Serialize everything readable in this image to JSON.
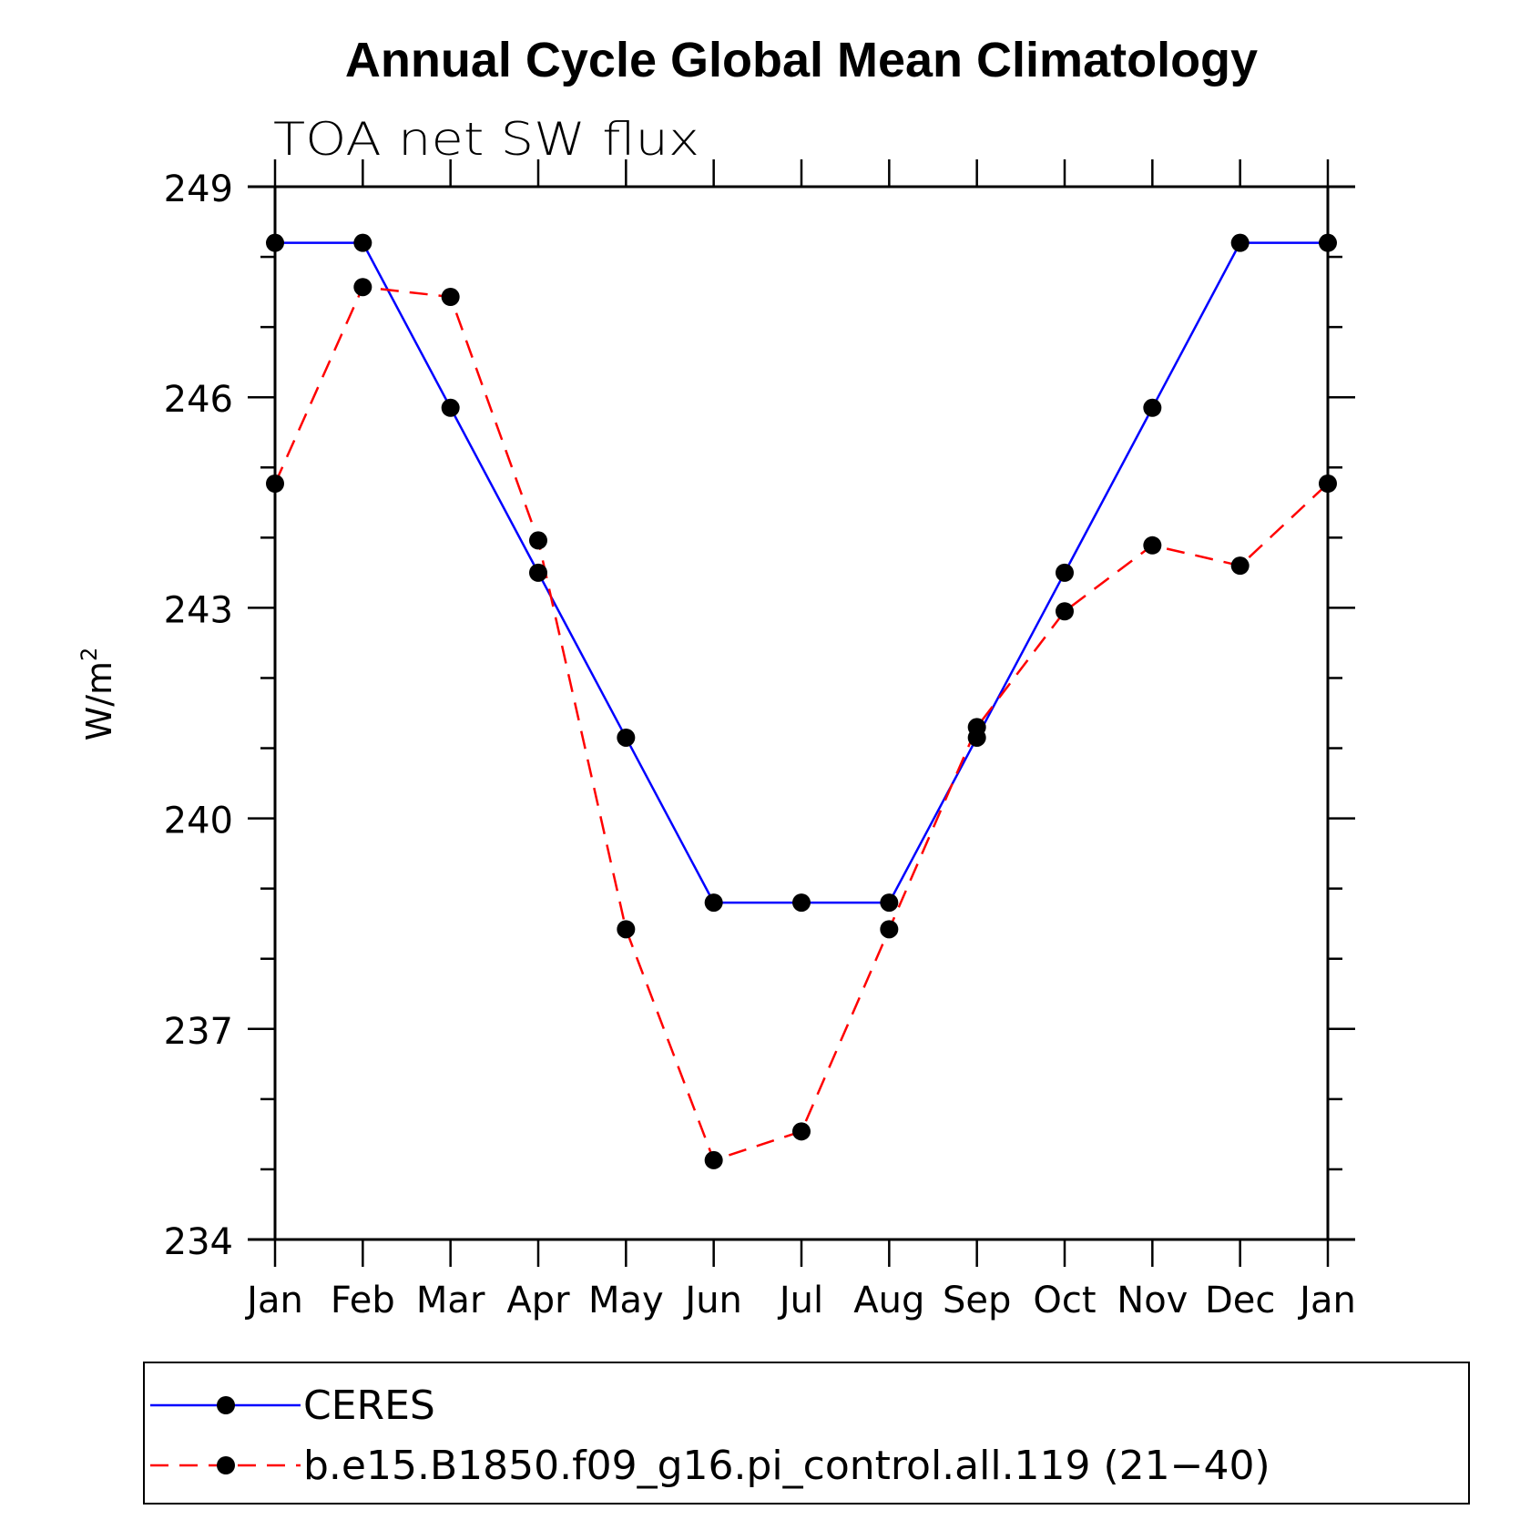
{
  "chart_data": {
    "type": "line",
    "title": "Annual Cycle Global Mean Climatology",
    "subtitle": "TOA net SW flux",
    "ylabel": "W/m",
    "ylabel_sup": "2",
    "xlabel": "",
    "categories": [
      "Jan",
      "Feb",
      "Mar",
      "Apr",
      "May",
      "Jun",
      "Jul",
      "Aug",
      "Sep",
      "Oct",
      "Nov",
      "Dec",
      "Jan"
    ],
    "ylim": [
      234,
      249
    ],
    "yticks": [
      "249",
      "246",
      "243",
      "240",
      "237",
      "234"
    ],
    "ytick_values": [
      249,
      246,
      243,
      240,
      237,
      234
    ],
    "grid": false,
    "legend_position": "bottom",
    "series": [
      {
        "name": "CERES",
        "color": "#0000ff",
        "dashed": false,
        "values": [
          248.2,
          248.2,
          245.85,
          243.5,
          241.15,
          238.8,
          238.8,
          238.8,
          241.15,
          243.5,
          245.85,
          248.2,
          248.2
        ]
      },
      {
        "name": "b.e15.B1850.f09_g16.pi_control.all.119 (21−40)",
        "color": "#ff0000",
        "dashed": true,
        "values": [
          244.77,
          247.57,
          247.43,
          243.96,
          238.42,
          235.13,
          235.54,
          238.42,
          241.3,
          242.95,
          243.89,
          243.6,
          244.77
        ]
      }
    ]
  }
}
